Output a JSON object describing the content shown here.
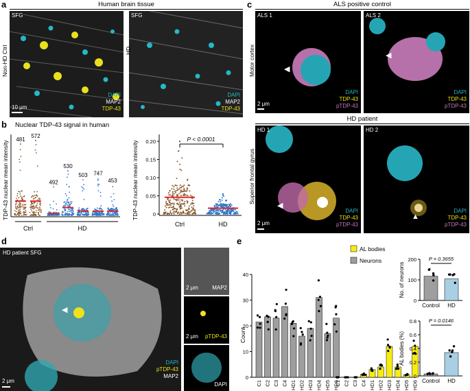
{
  "panel_a": {
    "label": "a",
    "header": "Human brain tissue",
    "row_label_left": "Non-HD Ctrl",
    "row_label_right": "HD",
    "img1_label": "SFG",
    "img2_label": "SFG",
    "legend": [
      "DAPI",
      "MAP2",
      "TDP-43"
    ],
    "scale": "10 μm"
  },
  "panel_b": {
    "label": "b",
    "title": "Nuclear TDP-43 signal in human",
    "ylabel": "TDP-43 nuclear mean intensity",
    "pvalue": "P < 0.0001",
    "left_plot": {
      "groups": [
        "Ctrl",
        "HD"
      ],
      "counts": [
        "481",
        "572",
        "492",
        "530",
        "503",
        "747",
        "453"
      ],
      "medians": [
        0.04,
        0.04,
        0.005,
        0.022,
        0.012,
        0.012,
        0.012
      ],
      "maxes": [
        0.2,
        0.21,
        0.08,
        0.125,
        0.1,
        0.105,
        0.085
      ]
    },
    "right_plot": {
      "groups": [
        "Ctrl",
        "HD"
      ],
      "yticks": [
        "0",
        "0.05",
        "0.10",
        "0.15",
        "0.20"
      ],
      "medians": [
        0.046,
        0.016
      ]
    }
  },
  "panel_c": {
    "label": "c",
    "header_top": "ALS positive control",
    "header_bottom": "HD patient",
    "img_labels": [
      "ALS 1",
      "ALS 2",
      "HD 1",
      "HD 2"
    ],
    "row_label_top": "Motor cortex",
    "row_label_bottom": "Superior frontal gyrus",
    "legend": [
      "DAPI",
      "TDP-43",
      "pTDP-43"
    ],
    "scale": "2 μm"
  },
  "panel_d": {
    "label": "d",
    "img_label": "HD patient SFG",
    "legend": [
      "DAPI",
      "pTDP-43",
      "MAP2"
    ],
    "side_labels": [
      "MAP2",
      "pTDP-43",
      "DAPI"
    ],
    "scale": "2 μm"
  },
  "panel_e": {
    "label": "e",
    "legend": [
      "AL bodies",
      "Neurons"
    ],
    "colors": {
      "al": "#f7ec12",
      "neurons": "#9e9e9e",
      "bars_right": "#a8cfe3"
    },
    "chart_data": [
      {
        "type": "bar",
        "ylabel": "Count",
        "categories": [
          "C1",
          "C2",
          "C3",
          "C4",
          "HD1",
          "HD2",
          "HD3",
          "HD4",
          "HD5",
          "HD6"
        ],
        "ylim": [
          0,
          40
        ],
        "yticks": [
          "0",
          "10",
          "20",
          "30",
          "40"
        ],
        "series": [
          {
            "name": "Neurons",
            "values": [
              21.5,
              23.5,
              23,
              27.5,
              21,
              16,
              19,
              31,
              17,
              23
            ]
          },
          {
            "name": "AL bodies",
            "values": [
              0,
              0,
              0,
              1.2,
              3,
              4,
              12,
              4,
              1,
              12
            ]
          }
        ]
      },
      {
        "type": "bar",
        "ylabel": "No. of neurons",
        "categories": [
          "Control",
          "HD"
        ],
        "values": [
          118,
          105
        ],
        "ylim": [
          0,
          200
        ],
        "yticks": [
          "0",
          "100",
          "200"
        ],
        "pvalue": "P = 0.3655"
      },
      {
        "type": "bar",
        "ylabel": "AL bodies (%)",
        "categories": [
          "Control",
          "HD"
        ],
        "values": [
          0.03,
          0.34
        ],
        "ylim": [
          0,
          0.8
        ],
        "yticks": [
          "0",
          "0.2",
          "0.4",
          "0.6",
          "0.8"
        ],
        "pvalue": "P = 0.0146"
      }
    ]
  }
}
